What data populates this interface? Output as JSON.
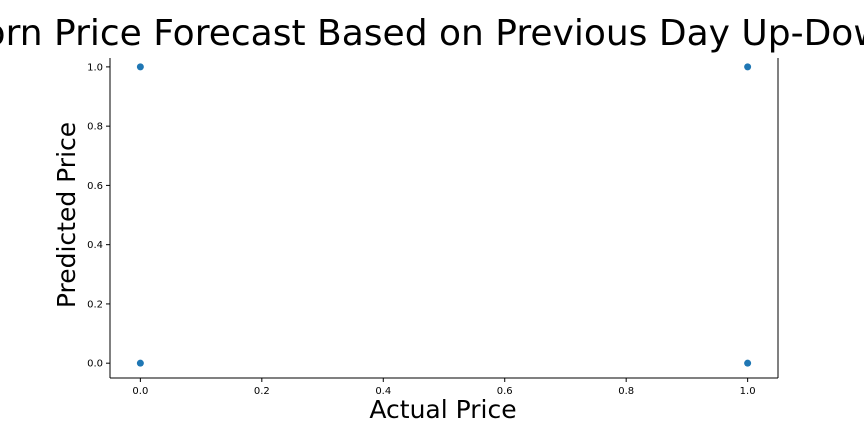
{
  "chart_data": {
    "type": "scatter",
    "title": "Corn Price Forecast Based on Previous Day Up-Down",
    "xlabel": "Actual Price",
    "ylabel": "Predicted Price",
    "xlim": [
      -0.05,
      1.05
    ],
    "ylim": [
      -0.05,
      1.03
    ],
    "xticks": [
      0.0,
      0.2,
      0.4,
      0.6,
      0.8,
      1.0
    ],
    "yticks": [
      0.0,
      0.2,
      0.4,
      0.6,
      0.8,
      1.0
    ],
    "xtick_labels": [
      "0.0",
      "0.2",
      "0.4",
      "0.6",
      "0.8",
      "1.0"
    ],
    "ytick_labels": [
      "0.0",
      "0.2",
      "0.4",
      "0.6",
      "0.8",
      "1.0"
    ],
    "grid": false,
    "series": [
      {
        "color": "#1f77b4",
        "points": [
          {
            "x": 0,
            "y": 1
          },
          {
            "x": 0,
            "y": 0
          },
          {
            "x": 1,
            "y": 1
          },
          {
            "x": 1,
            "y": 0
          }
        ]
      }
    ]
  }
}
